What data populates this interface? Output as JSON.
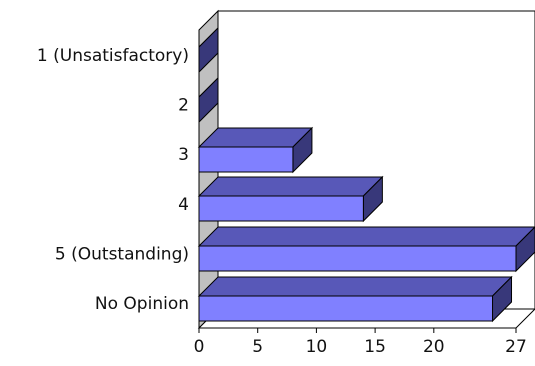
{
  "chart_data": {
    "type": "bar",
    "orientation": "horizontal",
    "style": "3d",
    "categories": [
      "1 (Unsatisfactory)",
      "2",
      "3",
      "4",
      "5 (Outstanding)",
      "No Opinion"
    ],
    "values": [
      0,
      0,
      8,
      14,
      27,
      25
    ],
    "x_ticks": [
      "0",
      "5",
      "10",
      "15",
      "20",
      "27"
    ],
    "xlim": [
      0,
      27
    ],
    "grid": false,
    "legend": "none",
    "colors": {
      "bar_front": "#8080ff",
      "bar_top": "#5858b8",
      "bar_side": "#38387a",
      "wall": "#c0c0c0",
      "floor": "#ffffff",
      "outline": "#000000"
    }
  }
}
